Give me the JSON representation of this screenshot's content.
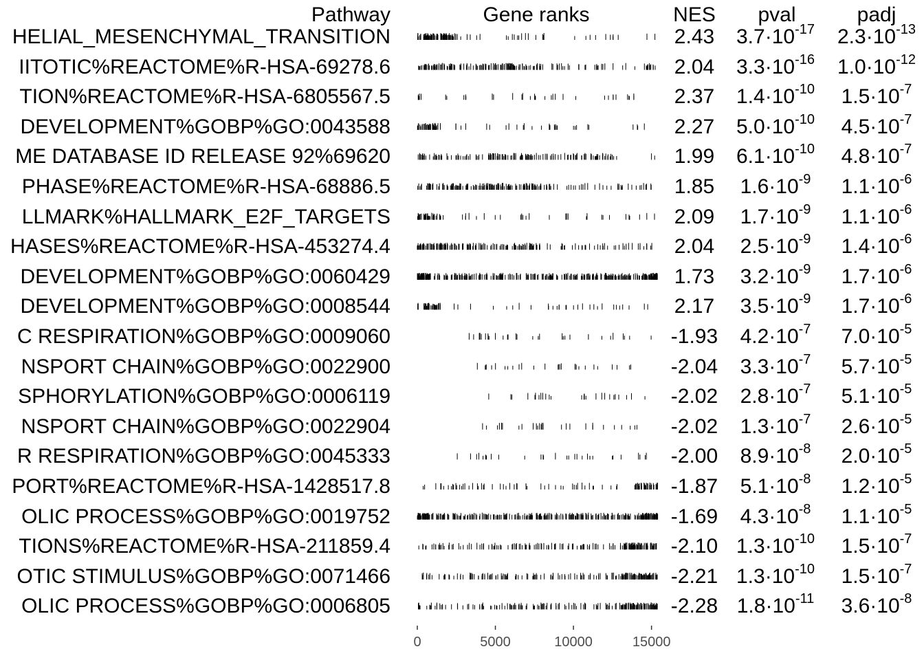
{
  "chart_data": {
    "type": "table",
    "columns": [
      "Pathway",
      "Gene ranks",
      "NES",
      "pval",
      "padj"
    ],
    "x_axis": {
      "range": [
        0,
        15500
      ],
      "ticks": [
        0,
        5000,
        10000,
        15000
      ],
      "tick_labels": [
        "0",
        "5000",
        "10000",
        "15000"
      ]
    },
    "rows": [
      {
        "pathway": "HELIAL_MESENCHYMAL_TRANSITION",
        "nes": "2.43",
        "pval_mant": "3.7·10",
        "pval_exp": "-17",
        "padj_mant": "2.3·10",
        "padj_exp": "-13",
        "rank_profile": "top-dense"
      },
      {
        "pathway": "IITOTIC%REACTOME%R-HSA-69278.6",
        "nes": "2.04",
        "pval_mant": "3.3·10",
        "pval_exp": "-16",
        "padj_mant": "1.0·10",
        "padj_exp": "-12",
        "rank_profile": "broad-top"
      },
      {
        "pathway": "TION%REACTOME%R-HSA-6805567.5",
        "nes": "2.37",
        "pval_mant": "1.4·10",
        "pval_exp": "-10",
        "padj_mant": "1.5·10",
        "padj_exp": "-7",
        "rank_profile": "sparse-top"
      },
      {
        "pathway": "DEVELOPMENT%GOBP%GO:0043588",
        "nes": "2.27",
        "pval_mant": "5.0·10",
        "pval_exp": "-10",
        "padj_mant": "4.5·10",
        "padj_exp": "-7",
        "rank_profile": "top-moderate"
      },
      {
        "pathway": "ME DATABASE ID RELEASE 92%69620",
        "nes": "1.99",
        "pval_mant": "6.1·10",
        "pval_exp": "-10",
        "padj_mant": "4.8·10",
        "padj_exp": "-7",
        "rank_profile": "top-half"
      },
      {
        "pathway": " PHASE%REACTOME%R-HSA-68886.5",
        "nes": "1.85",
        "pval_mant": "1.6·10",
        "pval_exp": "-9",
        "padj_mant": "1.1·10",
        "padj_exp": "-6",
        "rank_profile": "broad-top"
      },
      {
        "pathway": "LLMARK%HALLMARK_E2F_TARGETS",
        "nes": "2.09",
        "pval_mant": "1.7·10",
        "pval_exp": "-9",
        "padj_mant": "1.1·10",
        "padj_exp": "-6",
        "rank_profile": "top-moderate"
      },
      {
        "pathway": "HASES%REACTOME%R-HSA-453274.4",
        "nes": "2.04",
        "pval_mant": "2.5·10",
        "pval_exp": "-9",
        "padj_mant": "1.4·10",
        "padj_exp": "-6",
        "rank_profile": "broad-top"
      },
      {
        "pathway": "DEVELOPMENT%GOBP%GO:0060429",
        "nes": "1.73",
        "pval_mant": "3.2·10",
        "pval_exp": "-9",
        "padj_mant": "1.7·10",
        "padj_exp": "-6",
        "rank_profile": "full-dense"
      },
      {
        "pathway": "DEVELOPMENT%GOBP%GO:0008544",
        "nes": "2.17",
        "pval_mant": "3.5·10",
        "pval_exp": "-9",
        "padj_mant": "1.7·10",
        "padj_exp": "-6",
        "rank_profile": "top-moderate"
      },
      {
        "pathway": "C RESPIRATION%GOBP%GO:0009060",
        "nes": "-1.93",
        "pval_mant": "4.2·10",
        "pval_exp": "-7",
        "padj_mant": "7.0·10",
        "padj_exp": "-5",
        "rank_profile": "bottom-sparse"
      },
      {
        "pathway": "NSPORT CHAIN%GOBP%GO:0022900",
        "nes": "-2.04",
        "pval_mant": "3.3·10",
        "pval_exp": "-7",
        "padj_mant": "5.7·10",
        "padj_exp": "-5",
        "rank_profile": "bottom-very-sparse"
      },
      {
        "pathway": "SPHORYLATION%GOBP%GO:0006119",
        "nes": "-2.02",
        "pval_mant": "2.8·10",
        "pval_exp": "-7",
        "padj_mant": "5.1·10",
        "padj_exp": "-5",
        "rank_profile": "bottom-very-sparse"
      },
      {
        "pathway": "NSPORT CHAIN%GOBP%GO:0022904",
        "nes": "-2.02",
        "pval_mant": "1.3·10",
        "pval_exp": "-7",
        "padj_mant": "2.6·10",
        "padj_exp": "-5",
        "rank_profile": "bottom-very-sparse"
      },
      {
        "pathway": "R RESPIRATION%GOBP%GO:0045333",
        "nes": "-2.00",
        "pval_mant": "8.9·10",
        "pval_exp": "-8",
        "padj_mant": "2.0·10",
        "padj_exp": "-5",
        "rank_profile": "bottom-sparse"
      },
      {
        "pathway": "PORT%REACTOME%R-HSA-1428517.8",
        "nes": "-1.87",
        "pval_mant": "5.1·10",
        "pval_exp": "-8",
        "padj_mant": "1.2·10",
        "padj_exp": "-5",
        "rank_profile": "bottom-moderate"
      },
      {
        "pathway": "OLIC PROCESS%GOBP%GO:0019752",
        "nes": "-1.69",
        "pval_mant": "4.3·10",
        "pval_exp": "-8",
        "padj_mant": "1.1·10",
        "padj_exp": "-5",
        "rank_profile": "full-dense"
      },
      {
        "pathway": "TIONS%REACTOME%R-HSA-211859.4",
        "nes": "-2.10",
        "pval_mant": "1.3·10",
        "pval_exp": "-10",
        "padj_mant": "1.5·10",
        "padj_exp": "-7",
        "rank_profile": "bottom-dense"
      },
      {
        "pathway": "OTIC STIMULUS%GOBP%GO:0071466",
        "nes": "-2.21",
        "pval_mant": "1.3·10",
        "pval_exp": "-10",
        "padj_mant": "1.5·10",
        "padj_exp": "-7",
        "rank_profile": "bottom-dense"
      },
      {
        "pathway": "OLIC PROCESS%GOBP%GO:0006805",
        "nes": "-2.28",
        "pval_mant": "1.8·10",
        "pval_exp": "-11",
        "padj_mant": "3.6·10",
        "padj_exp": "-8",
        "rank_profile": "bottom-dense"
      }
    ]
  }
}
